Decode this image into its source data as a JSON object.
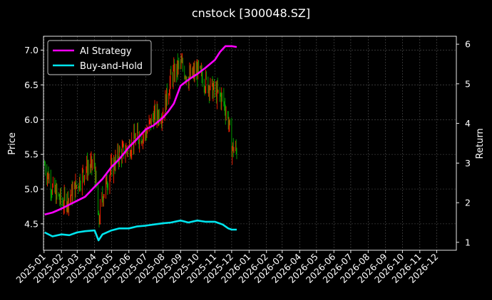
{
  "chart_data": {
    "type": "line",
    "title": "cnstock [300048.SZ]",
    "ylabel": "Price",
    "y2label": "Return",
    "ylim": [
      4.12,
      7.2
    ],
    "y2lim": [
      0.8,
      6.2
    ],
    "yticks": [
      4.5,
      5.0,
      5.5,
      6.0,
      6.5,
      7.0
    ],
    "y2ticks": [
      1,
      2,
      3,
      4,
      5,
      6
    ],
    "xlim": [
      "2024-12-31",
      "2027-01-05"
    ],
    "x_ticks": [
      "2025-01",
      "2025-02",
      "2025-03",
      "2025-04",
      "2025-05",
      "2025-06",
      "2025-07",
      "2025-08",
      "2025-09",
      "2025-10",
      "2025-11",
      "2025-12",
      "2026-01",
      "2026-02",
      "2026-03",
      "2026-04",
      "2026-05",
      "2026-06",
      "2026-07",
      "2026-08",
      "2026-09",
      "2026-10",
      "2026-11",
      "2026-12"
    ],
    "grid": true,
    "legend_position": "top-left",
    "colors": {
      "background": "#000000",
      "ai_strategy": "#ff00ff",
      "buy_and_hold": "#00e5ee",
      "candle_up": "#ff2200",
      "candle_down": "#00aa00",
      "grid": "#555555",
      "axes": "#ffffff"
    },
    "price_series": {
      "name": "Price",
      "x": [
        "2025-01-02",
        "2025-01-16",
        "2025-02-03",
        "2025-02-17",
        "2025-03-03",
        "2025-03-17",
        "2025-04-01",
        "2025-04-08",
        "2025-04-15",
        "2025-05-01",
        "2025-05-15",
        "2025-06-01",
        "2025-06-15",
        "2025-07-01",
        "2025-07-15",
        "2025-08-01",
        "2025-08-15",
        "2025-09-01",
        "2025-09-15",
        "2025-10-01",
        "2025-10-15",
        "2025-11-01",
        "2025-11-15",
        "2025-11-25",
        "2025-12-01",
        "2025-12-10"
      ],
      "values": [
        5.35,
        5.0,
        4.8,
        4.9,
        5.1,
        5.3,
        5.35,
        4.5,
        4.9,
        5.3,
        5.5,
        5.6,
        5.75,
        5.8,
        6.05,
        6.1,
        6.6,
        6.8,
        6.6,
        6.7,
        6.55,
        6.4,
        6.3,
        6.0,
        5.6,
        5.55
      ]
    },
    "series": [
      {
        "name": "AI Strategy",
        "axis": "right",
        "x": [
          "2025-01-02",
          "2025-01-16",
          "2025-02-01",
          "2025-02-15",
          "2025-03-01",
          "2025-03-15",
          "2025-04-01",
          "2025-04-15",
          "2025-05-01",
          "2025-05-15",
          "2025-06-01",
          "2025-06-15",
          "2025-07-01",
          "2025-07-15",
          "2025-08-01",
          "2025-08-10",
          "2025-08-20",
          "2025-09-01",
          "2025-09-10",
          "2025-09-20",
          "2025-10-01",
          "2025-10-15",
          "2025-11-01",
          "2025-11-10",
          "2025-11-20",
          "2025-12-01",
          "2025-12-10"
        ],
        "values": [
          1.7,
          1.75,
          1.85,
          1.95,
          2.05,
          2.15,
          2.4,
          2.6,
          2.9,
          3.1,
          3.4,
          3.6,
          3.85,
          3.95,
          4.15,
          4.3,
          4.5,
          4.95,
          5.05,
          5.15,
          5.25,
          5.4,
          5.6,
          5.8,
          5.95,
          5.95,
          5.93
        ]
      },
      {
        "name": "Buy-and-Hold",
        "axis": "right",
        "x": [
          "2025-01-02",
          "2025-01-16",
          "2025-02-01",
          "2025-02-15",
          "2025-03-01",
          "2025-03-15",
          "2025-04-01",
          "2025-04-08",
          "2025-04-15",
          "2025-05-01",
          "2025-05-15",
          "2025-06-01",
          "2025-06-15",
          "2025-07-01",
          "2025-07-15",
          "2025-08-01",
          "2025-08-15",
          "2025-09-01",
          "2025-09-15",
          "2025-10-01",
          "2025-10-15",
          "2025-11-01",
          "2025-11-15",
          "2025-11-25",
          "2025-12-01",
          "2025-12-10"
        ],
        "values": [
          1.25,
          1.15,
          1.2,
          1.18,
          1.25,
          1.28,
          1.3,
          1.05,
          1.2,
          1.3,
          1.35,
          1.35,
          1.4,
          1.42,
          1.45,
          1.48,
          1.5,
          1.55,
          1.5,
          1.55,
          1.52,
          1.52,
          1.45,
          1.35,
          1.32,
          1.32
        ]
      }
    ],
    "legend": [
      "AI Strategy",
      "Buy-and-Hold"
    ]
  }
}
